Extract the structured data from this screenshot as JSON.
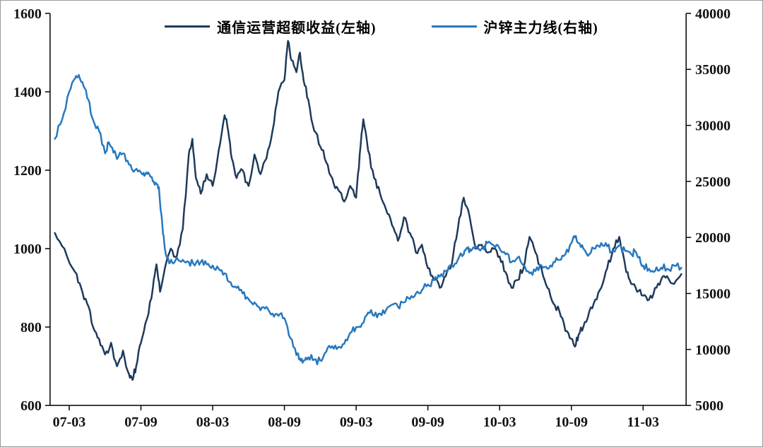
{
  "chart_data": {
    "type": "line",
    "title": "",
    "grid": false,
    "background": "#ffffff",
    "legend_position": "top-center",
    "axis_color": "#000000",
    "label_color": "#111111",
    "x_axis": {
      "tick_labels": [
        "07-03",
        "07-09",
        "08-03",
        "08-09",
        "09-03",
        "09-09",
        "10-03",
        "10-09",
        "11-03"
      ],
      "tick_months": [
        0,
        6,
        12,
        18,
        24,
        30,
        36,
        42,
        48
      ]
    },
    "left_axis": {
      "min": 600,
      "max": 1600,
      "ticks": [
        600,
        800,
        1000,
        1200,
        1400,
        1600
      ]
    },
    "right_axis": {
      "min": 5000,
      "max": 40000,
      "ticks": [
        5000,
        10000,
        15000,
        20000,
        25000,
        30000,
        35000,
        40000
      ]
    },
    "series": [
      {
        "name": "通信运营超额收益(左轴)",
        "axis": "left",
        "color": "#1e3a5c",
        "points": [
          [
            -1.2,
            1040
          ],
          [
            -0.4,
            1000
          ],
          [
            0.5,
            940
          ],
          [
            1,
            900
          ],
          [
            1.5,
            860
          ],
          [
            2,
            800
          ],
          [
            2.5,
            770
          ],
          [
            3,
            730
          ],
          [
            3.5,
            760
          ],
          [
            4,
            700
          ],
          [
            4.5,
            740
          ],
          [
            5,
            680
          ],
          [
            5.3,
            665
          ],
          [
            5.6,
            700
          ],
          [
            6,
            760
          ],
          [
            6.5,
            820
          ],
          [
            7,
            900
          ],
          [
            7.3,
            960
          ],
          [
            7.6,
            890
          ],
          [
            8,
            950
          ],
          [
            8.5,
            1000
          ],
          [
            9,
            980
          ],
          [
            9.5,
            1050
          ],
          [
            10,
            1240
          ],
          [
            10.3,
            1280
          ],
          [
            10.6,
            1180
          ],
          [
            11,
            1140
          ],
          [
            11.5,
            1190
          ],
          [
            12,
            1160
          ],
          [
            12.5,
            1250
          ],
          [
            13,
            1340
          ],
          [
            13.3,
            1300
          ],
          [
            13.6,
            1230
          ],
          [
            14,
            1180
          ],
          [
            14.5,
            1200
          ],
          [
            15,
            1160
          ],
          [
            15.5,
            1240
          ],
          [
            16,
            1190
          ],
          [
            16.5,
            1230
          ],
          [
            17,
            1300
          ],
          [
            17.5,
            1400
          ],
          [
            18,
            1430
          ],
          [
            18.3,
            1530
          ],
          [
            18.6,
            1480
          ],
          [
            19,
            1450
          ],
          [
            19.3,
            1500
          ],
          [
            19.6,
            1430
          ],
          [
            20,
            1380
          ],
          [
            20.5,
            1300
          ],
          [
            21,
            1260
          ],
          [
            21.5,
            1220
          ],
          [
            22,
            1180
          ],
          [
            22.5,
            1150
          ],
          [
            23,
            1120
          ],
          [
            23.5,
            1160
          ],
          [
            24,
            1130
          ],
          [
            24.3,
            1240
          ],
          [
            24.6,
            1330
          ],
          [
            25,
            1250
          ],
          [
            25.5,
            1180
          ],
          [
            26,
            1140
          ],
          [
            26.5,
            1100
          ],
          [
            27,
            1060
          ],
          [
            27.5,
            1020
          ],
          [
            28,
            1080
          ],
          [
            28.5,
            1040
          ],
          [
            29,
            990
          ],
          [
            29.5,
            1010
          ],
          [
            30,
            950
          ],
          [
            30.5,
            920
          ],
          [
            31,
            900
          ],
          [
            31.5,
            930
          ],
          [
            32,
            960
          ],
          [
            32.5,
            1050
          ],
          [
            33,
            1130
          ],
          [
            33.5,
            1080
          ],
          [
            34,
            1000
          ],
          [
            34.5,
            1010
          ],
          [
            35,
            990
          ],
          [
            35.5,
            1000
          ],
          [
            36,
            980
          ],
          [
            36.5,
            940
          ],
          [
            37,
            900
          ],
          [
            37.5,
            920
          ],
          [
            38,
            950
          ],
          [
            38.5,
            1030
          ],
          [
            39,
            990
          ],
          [
            39.5,
            950
          ],
          [
            40,
            900
          ],
          [
            40.5,
            860
          ],
          [
            41,
            840
          ],
          [
            41.5,
            790
          ],
          [
            42,
            770
          ],
          [
            42.3,
            750
          ],
          [
            42.6,
            780
          ],
          [
            43,
            800
          ],
          [
            43.5,
            840
          ],
          [
            44,
            870
          ],
          [
            44.5,
            900
          ],
          [
            45,
            950
          ],
          [
            45.5,
            1000
          ],
          [
            46,
            1030
          ],
          [
            46.3,
            990
          ],
          [
            46.6,
            940
          ],
          [
            47,
            910
          ],
          [
            47.5,
            890
          ],
          [
            48,
            880
          ],
          [
            48.5,
            870
          ],
          [
            49,
            900
          ],
          [
            49.5,
            920
          ],
          [
            50,
            930
          ],
          [
            50.6,
            910
          ],
          [
            51.2,
            935
          ]
        ]
      },
      {
        "name": "沪锌主力线(右轴)",
        "axis": "right",
        "color": "#2878bd",
        "points": [
          [
            -1.2,
            28800
          ],
          [
            -0.6,
            30500
          ],
          [
            0,
            33000
          ],
          [
            0.5,
            34200
          ],
          [
            0.8,
            34500
          ],
          [
            1.2,
            33500
          ],
          [
            1.6,
            32300
          ],
          [
            2,
            30500
          ],
          [
            2.5,
            29500
          ],
          [
            3,
            27500
          ],
          [
            3.3,
            28500
          ],
          [
            3.6,
            28000
          ],
          [
            4,
            27000
          ],
          [
            4.5,
            27500
          ],
          [
            5,
            26500
          ],
          [
            5.5,
            26000
          ],
          [
            6,
            25800
          ],
          [
            6.3,
            25500
          ],
          [
            6.6,
            25800
          ],
          [
            7,
            25000
          ],
          [
            7.3,
            24800
          ],
          [
            7.5,
            24500
          ],
          [
            7.8,
            21000
          ],
          [
            8,
            19000
          ],
          [
            8.3,
            18000
          ],
          [
            8.6,
            17800
          ],
          [
            9,
            18200
          ],
          [
            9.5,
            18000
          ],
          [
            10,
            17800
          ],
          [
            10.5,
            17500
          ],
          [
            11,
            17800
          ],
          [
            11.5,
            17600
          ],
          [
            12,
            17500
          ],
          [
            12.5,
            17200
          ],
          [
            13,
            16800
          ],
          [
            13.5,
            16000
          ],
          [
            14,
            15500
          ],
          [
            14.5,
            15000
          ],
          [
            15,
            14500
          ],
          [
            15.5,
            14200
          ],
          [
            16,
            13500
          ],
          [
            16.5,
            13800
          ],
          [
            17,
            13200
          ],
          [
            17.5,
            13000
          ],
          [
            18,
            12800
          ],
          [
            18.5,
            11000
          ],
          [
            19,
            9500
          ],
          [
            19.3,
            9200
          ],
          [
            19.6,
            9000
          ],
          [
            20,
            9300
          ],
          [
            20.5,
            9100
          ],
          [
            21,
            9000
          ],
          [
            21.5,
            9800
          ],
          [
            22,
            10300
          ],
          [
            22.5,
            10200
          ],
          [
            23,
            10500
          ],
          [
            23.5,
            11500
          ],
          [
            24,
            12000
          ],
          [
            24.5,
            12300
          ],
          [
            25,
            13300
          ],
          [
            25.5,
            13000
          ],
          [
            26,
            13200
          ],
          [
            26.5,
            13500
          ],
          [
            27,
            14000
          ],
          [
            27.5,
            13800
          ],
          [
            28,
            14200
          ],
          [
            28.5,
            14500
          ],
          [
            29,
            15000
          ],
          [
            29.5,
            15300
          ],
          [
            30,
            15800
          ],
          [
            30.5,
            16200
          ],
          [
            31,
            16500
          ],
          [
            31.5,
            17000
          ],
          [
            32,
            17500
          ],
          [
            32.5,
            18000
          ],
          [
            33,
            18500
          ],
          [
            33.3,
            19000
          ],
          [
            33.6,
            18800
          ],
          [
            34,
            19200
          ],
          [
            34.5,
            19000
          ],
          [
            35,
            19500
          ],
          [
            35.5,
            19300
          ],
          [
            36,
            19000
          ],
          [
            36.5,
            18500
          ],
          [
            37,
            17800
          ],
          [
            37.5,
            18200
          ],
          [
            38,
            17500
          ],
          [
            38.5,
            16800
          ],
          [
            39,
            17000
          ],
          [
            39.5,
            17500
          ],
          [
            40,
            17200
          ],
          [
            40.5,
            17800
          ],
          [
            41,
            18000
          ],
          [
            41.5,
            18500
          ],
          [
            42,
            19500
          ],
          [
            42.3,
            20000
          ],
          [
            42.6,
            19500
          ],
          [
            43,
            19000
          ],
          [
            43.5,
            18500
          ],
          [
            44,
            19000
          ],
          [
            44.5,
            19500
          ],
          [
            45,
            19200
          ],
          [
            45.5,
            18800
          ],
          [
            46,
            19300
          ],
          [
            46.5,
            18800
          ],
          [
            47,
            18500
          ],
          [
            47.3,
            18800
          ],
          [
            47.6,
            18200
          ],
          [
            48,
            17500
          ],
          [
            48.5,
            17200
          ],
          [
            49,
            17000
          ],
          [
            49.5,
            17300
          ],
          [
            50,
            17200
          ],
          [
            50.6,
            17500
          ],
          [
            51.2,
            17300
          ]
        ]
      }
    ]
  }
}
